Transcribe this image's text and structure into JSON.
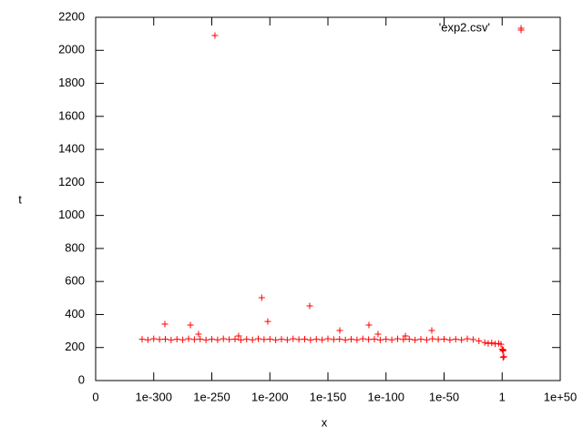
{
  "chart_data": {
    "type": "scatter",
    "xlabel": "x",
    "ylabel": "t",
    "xlim": [
      -350,
      50
    ],
    "xticks": [
      {
        "value": -350,
        "label": "0"
      },
      {
        "value": -300,
        "label": "1e-300"
      },
      {
        "value": -250,
        "label": "1e-250"
      },
      {
        "value": -200,
        "label": "1e-200"
      },
      {
        "value": -150,
        "label": "1e-150"
      },
      {
        "value": -100,
        "label": "1e-100"
      },
      {
        "value": -50,
        "label": "1e-50"
      },
      {
        "value": 0,
        "label": "1"
      },
      {
        "value": 50,
        "label": "1e+50"
      }
    ],
    "ylim": [
      0,
      2200
    ],
    "yticks": [
      0,
      200,
      400,
      600,
      800,
      1000,
      1200,
      1400,
      1600,
      1800,
      2000,
      2200
    ],
    "legend_position": "top-right",
    "series": [
      {
        "name": "'exp2.csv'",
        "color": "#ff0000",
        "x": [
          -310,
          -305,
          -300,
          -295,
          -290,
          -285,
          -280,
          -275,
          -270,
          -265,
          -260,
          -255,
          -250,
          -245,
          -240,
          -235,
          -230,
          -225,
          -220,
          -215,
          -210,
          -205,
          -200,
          -195,
          -190,
          -185,
          -180,
          -175,
          -170,
          -165,
          -160,
          -155,
          -150,
          -145,
          -140,
          -135,
          -130,
          -125,
          -120,
          -115,
          -110,
          -105,
          -100,
          -95,
          -90,
          -85,
          -80,
          -75,
          -70,
          -65,
          -60,
          -55,
          -50,
          -45,
          -40,
          -35,
          -30,
          -25,
          -20,
          -15,
          -12,
          -9,
          -6,
          -3,
          -1,
          0,
          0.5,
          1,
          1.5,
          0.8,
          -247.3,
          16.3,
          -207,
          -165.7,
          -290.4,
          -268.4,
          -261.4,
          -201.8,
          -139.8,
          -114.7,
          -106.9,
          -60.6,
          -83.3,
          -226.9
        ],
        "y": [
          250,
          247,
          253,
          249,
          251,
          246,
          250,
          247,
          253,
          249,
          251,
          246,
          250,
          247,
          253,
          249,
          251,
          246,
          250,
          247,
          253,
          249,
          251,
          246,
          250,
          247,
          253,
          249,
          251,
          246,
          250,
          247,
          253,
          249,
          251,
          246,
          250,
          247,
          253,
          249,
          251,
          246,
          250,
          247,
          253,
          249,
          251,
          246,
          250,
          247,
          253,
          249,
          251,
          246,
          250,
          247,
          253,
          249,
          240,
          230,
          225,
          228,
          222,
          225,
          220,
          190,
          180,
          185,
          145,
          140,
          2090,
          2123,
          502,
          452,
          342,
          336,
          281,
          358,
          303,
          336,
          281,
          303,
          270,
          270
        ]
      }
    ]
  }
}
